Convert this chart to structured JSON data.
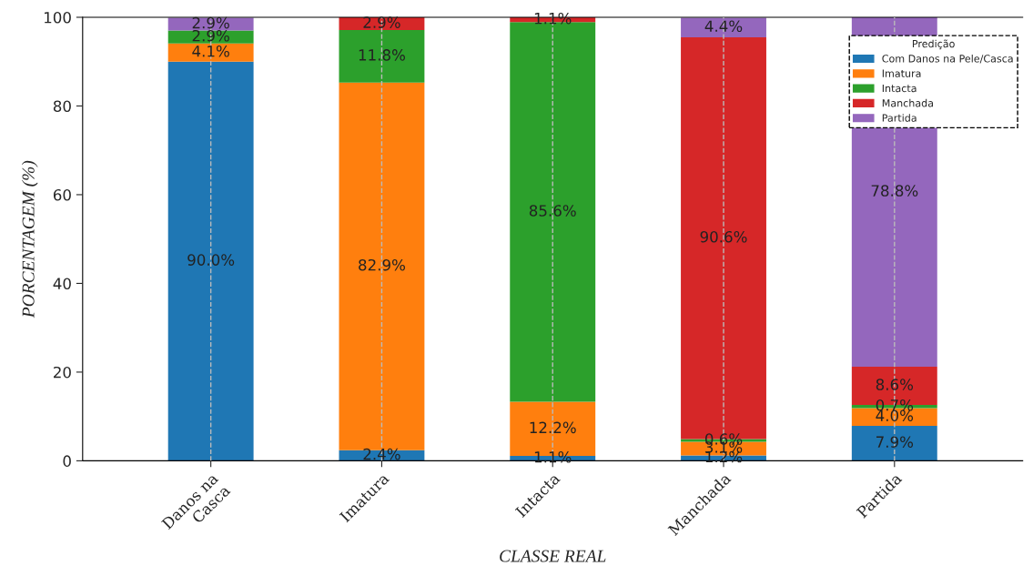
{
  "chart_data": {
    "type": "bar",
    "stacked": true,
    "xlabel": "CLASSE REAL",
    "ylabel": "PORCENTAGEM (%)",
    "legend_title": "Predição",
    "legend": "top right",
    "grid": "x",
    "categories": [
      "Danos na\nCasca",
      "Imatura",
      "Intacta",
      "Manchada",
      "Partida"
    ],
    "ylim": [
      0,
      100
    ],
    "yticks": [
      0,
      20,
      40,
      60,
      80,
      100
    ],
    "series": [
      {
        "name": "Com Danos na Pele/Casca",
        "color": "#1f77b4",
        "values": [
          90.0,
          2.4,
          1.1,
          1.2,
          7.9
        ],
        "value_labels": [
          "90.0%",
          "2.4%",
          "1.1%",
          "1.2%",
          "7.9%"
        ]
      },
      {
        "name": "Imatura",
        "color": "#ff7f0e",
        "values": [
          4.1,
          82.9,
          12.2,
          3.1,
          4.0
        ],
        "value_labels": [
          "4.1%",
          "82.9%",
          "12.2%",
          "3.1%",
          "4.0%"
        ]
      },
      {
        "name": "Intacta",
        "color": "#2ca02c",
        "values": [
          2.9,
          11.8,
          85.6,
          0.6,
          0.7
        ],
        "value_labels": [
          "2.9%",
          "11.8%",
          "85.6%",
          "0.6%",
          "0.7%"
        ]
      },
      {
        "name": "Manchada",
        "color": "#d62728",
        "values": [
          0,
          2.9,
          1.1,
          90.6,
          8.6
        ],
        "value_labels": [
          null,
          "2.9%",
          "1.1%",
          "90.6%",
          "8.6%"
        ]
      },
      {
        "name": "Partida",
        "color": "#9467bd",
        "values": [
          2.9,
          0,
          0,
          4.4,
          78.8
        ],
        "value_labels": [
          "2.9%",
          null,
          null,
          "4.4%",
          "78.8%"
        ]
      }
    ]
  }
}
